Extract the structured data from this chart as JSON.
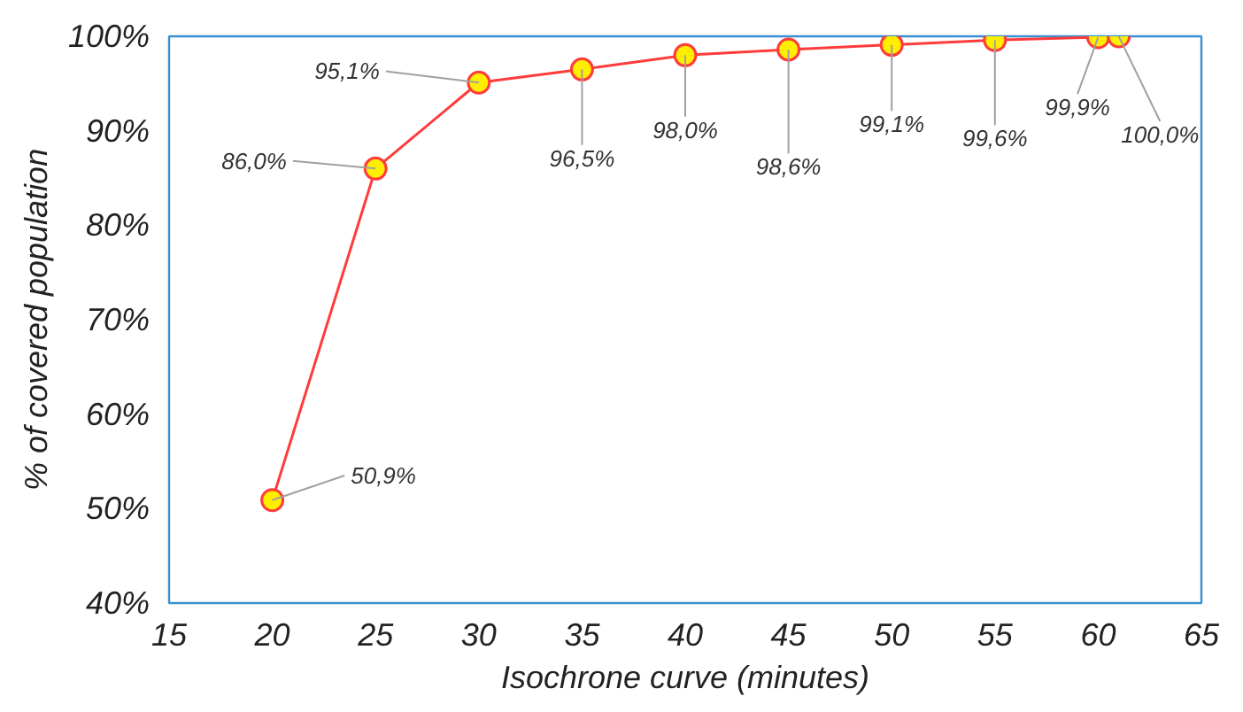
{
  "chart_data": {
    "type": "line",
    "xlabel": "Isochrone curve (minutes)",
    "ylabel": "% of covered population",
    "x": [
      20,
      25,
      30,
      35,
      40,
      45,
      50,
      55,
      60,
      61
    ],
    "series": [
      {
        "color": "#ff3b3b",
        "values": [
          50.9,
          86.0,
          95.1,
          96.5,
          98.0,
          98.6,
          99.1,
          99.6,
          99.9,
          100.0
        ],
        "value_labels": [
          "50,9%",
          "86,0%",
          "95,1%",
          "96,5%",
          "98,0%",
          "98,6%",
          "99,1%",
          "99,6%",
          "99,9%",
          "100,0%"
        ]
      }
    ],
    "xlim": [
      15,
      65
    ],
    "xticks": [
      15,
      20,
      25,
      30,
      35,
      40,
      45,
      50,
      55,
      60,
      65
    ],
    "ylim": [
      40,
      100
    ],
    "yticks": [
      {
        "value": 40,
        "label": "40%"
      },
      {
        "value": 50,
        "label": "50%"
      },
      {
        "value": 60,
        "label": "60%"
      },
      {
        "value": 70,
        "label": "70%"
      },
      {
        "value": 80,
        "label": "80%"
      },
      {
        "value": 90,
        "label": "90%"
      },
      {
        "value": 100,
        "label": "100%"
      }
    ],
    "marker": "circle"
  }
}
